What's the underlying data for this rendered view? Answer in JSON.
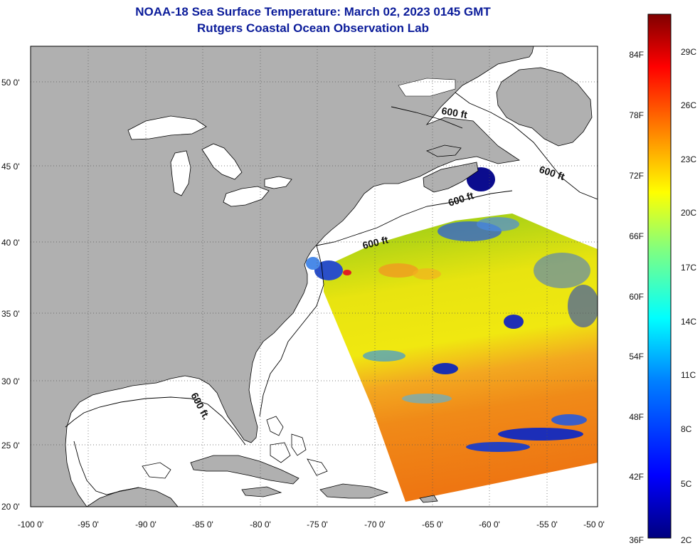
{
  "header": {
    "title_line1": "NOAA-18 Sea Surface Temperature:  March 02, 2023 0145 GMT",
    "title_line2": "Rutgers Coastal Ocean Observation Lab"
  },
  "map": {
    "longitude_labels": [
      "-100 0'",
      "-95 0'",
      "-90 0'",
      "-85 0'",
      "-80 0'",
      "-75 0'",
      "-70 0'",
      "-65 0'",
      "-60 0'",
      "-55 0'",
      "-50 0'"
    ],
    "latitude_labels": [
      "50 0'",
      "45 0'",
      "40 0'",
      "35 0'",
      "30 0'",
      "25 0'",
      "20 0'"
    ],
    "contour_label": "600 ft",
    "contour_label_gulf": "600 ft.",
    "colors": {
      "land": "#b0b0b0",
      "ocean": "#ffffff",
      "coast": "#000000",
      "grid": "#555555"
    }
  },
  "colorbar": {
    "fahrenheit_labels": [
      "84F",
      "78F",
      "72F",
      "66F",
      "60F",
      "54F",
      "48F",
      "42F",
      "36F"
    ],
    "celsius_labels": [
      "29C",
      "26C",
      "23C",
      "20C",
      "17C",
      "14C",
      "11C",
      "8C",
      "5C",
      "2C"
    ],
    "colors": [
      "#00007f",
      "#0000ff",
      "#007fff",
      "#00ffff",
      "#7fff7f",
      "#ffff00",
      "#ff7f00",
      "#ff0000",
      "#7f0000"
    ]
  }
}
